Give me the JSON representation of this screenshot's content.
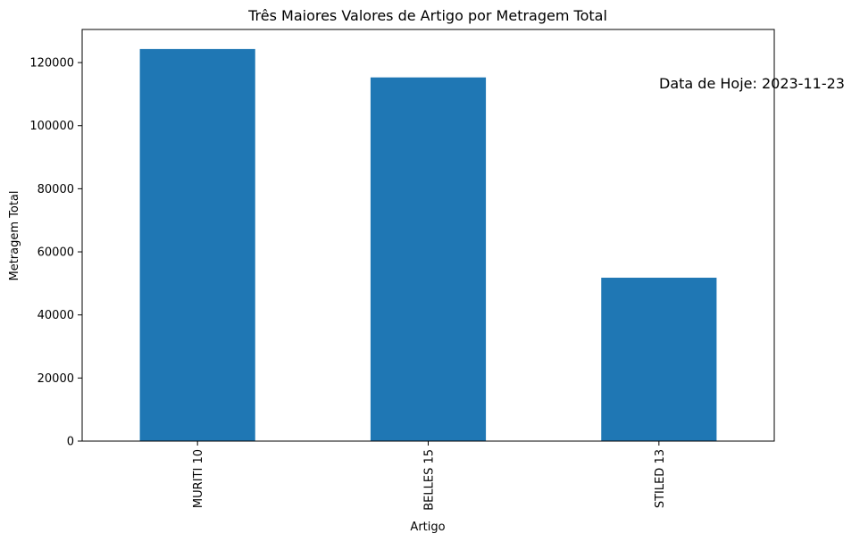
{
  "chart_data": {
    "type": "bar",
    "title": "Três Maiores Valores de Artigo por Metragem Total",
    "xlabel": "Artigo",
    "ylabel": "Metragem Total",
    "categories": [
      "MURITI 10",
      "BELLES 15",
      "STILED 13"
    ],
    "values": [
      124300,
      115300,
      51800
    ],
    "ylim": [
      0,
      130500
    ],
    "yticks": [
      0,
      20000,
      40000,
      60000,
      80000,
      100000,
      120000
    ],
    "bar_color": "#1f77b4",
    "grid": false,
    "annotation": "Data de Hoje: 2023-11-23"
  }
}
